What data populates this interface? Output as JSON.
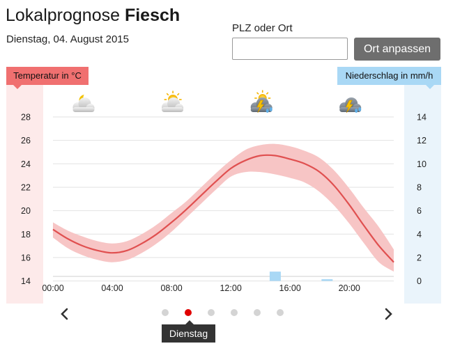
{
  "header": {
    "title_prefix": "Lokalprognose",
    "title_place": "Fiesch",
    "date": "Dienstag, 04. August 2015"
  },
  "search": {
    "label": "PLZ oder Ort",
    "value": "",
    "placeholder": "",
    "button_label": "Ort anpassen"
  },
  "legend": {
    "temperature": "Temperatur in °C",
    "precipitation": "Niederschlag in mm/h",
    "temperature_color": "#f07070",
    "precipitation_color": "#a9d8f5"
  },
  "weather_icons": [
    {
      "icon": "moon-cloud-icon",
      "hour": 2
    },
    {
      "icon": "sun-cloud-icon",
      "hour": 8
    },
    {
      "icon": "thunderstorm-sun-icon",
      "hour": 14
    },
    {
      "icon": "thunderstorm-icon",
      "hour": 20
    }
  ],
  "chart_data": {
    "type": "line",
    "title": "",
    "xlabel": "",
    "ylabel": "Temperatur in °C",
    "y2label": "Niederschlag in mm/h",
    "x_ticks": [
      "00:00",
      "04:00",
      "08:00",
      "12:00",
      "16:00",
      "20:00"
    ],
    "x_tick_hours": [
      0,
      4,
      8,
      12,
      16,
      20
    ],
    "xlim": [
      0,
      23
    ],
    "ylim": [
      13.5,
      28
    ],
    "y_ticks": [
      14,
      16,
      18,
      20,
      22,
      24,
      26,
      28
    ],
    "y2lim": [
      -0.5,
      14
    ],
    "y2_ticks": [
      0,
      2,
      4,
      6,
      8,
      10,
      12,
      14
    ],
    "grid": true,
    "series": [
      {
        "type": "line",
        "x": [
          0,
          1,
          2,
          3,
          4,
          5,
          6,
          7,
          8,
          9,
          10,
          11,
          12,
          13,
          14,
          15,
          16,
          17,
          18,
          19,
          20,
          21,
          22,
          23
        ],
        "values": [
          18.4,
          17.6,
          17.0,
          16.6,
          16.4,
          16.6,
          17.2,
          18.0,
          19.0,
          20.1,
          21.3,
          22.5,
          23.6,
          24.3,
          24.7,
          24.7,
          24.4,
          24.0,
          23.3,
          22.1,
          20.5,
          18.7,
          17.0,
          15.6
        ],
        "color": "#e05050"
      },
      {
        "type": "band",
        "x": [
          0,
          1,
          2,
          3,
          4,
          5,
          6,
          7,
          8,
          9,
          10,
          11,
          12,
          13,
          14,
          15,
          16,
          17,
          18,
          19,
          20,
          21,
          22,
          23
        ],
        "low": [
          17.7,
          16.8,
          16.2,
          15.8,
          15.6,
          15.8,
          16.4,
          17.2,
          18.2,
          19.4,
          20.6,
          21.8,
          22.9,
          23.3,
          23.3,
          23.1,
          22.8,
          22.4,
          21.6,
          20.4,
          18.9,
          17.2,
          15.6,
          14.8
        ],
        "high": [
          19.0,
          18.3,
          17.8,
          17.4,
          17.2,
          17.4,
          18.0,
          18.8,
          19.8,
          20.8,
          22.0,
          23.2,
          24.3,
          25.2,
          25.6,
          25.7,
          25.5,
          25.1,
          24.5,
          23.4,
          21.9,
          20.2,
          18.6,
          16.7
        ],
        "color": "#f7c5c5"
      },
      {
        "type": "bar",
        "axis": "right",
        "x": [
          15,
          18.5
        ],
        "values": [
          0.8,
          0.15
        ],
        "color": "#a9d8f5"
      }
    ]
  },
  "carousel": {
    "dot_count": 6,
    "active_index": 1,
    "active_label": "Dienstag"
  }
}
